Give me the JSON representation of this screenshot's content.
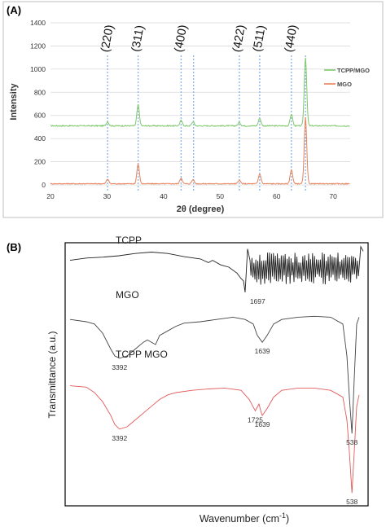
{
  "panels": [
    {
      "label": "(A)",
      "chart_data": {
        "type": "line",
        "xlabel": "2θ (degree)",
        "ylabel": "Intensity",
        "xlim": [
          20,
          73
        ],
        "ylim": [
          0,
          1400
        ],
        "x_ticks": [
          "20",
          "30",
          "40",
          "50",
          "60",
          "70"
        ],
        "y_ticks": [
          "0",
          "200",
          "400",
          "600",
          "800",
          "1000",
          "1200",
          "1400"
        ],
        "grid": "horizontal",
        "legend_position": "right",
        "reference_lines": [
          30.1,
          35.5,
          43.1,
          45.3,
          53.4,
          57.0,
          62.6,
          65.1
        ],
        "hkl_annotations": [
          {
            "label": "(220)",
            "x": 30.1
          },
          {
            "label": "(311)",
            "x": 35.5
          },
          {
            "label": "(400)",
            "x": 43.1
          },
          {
            "label": "(422)",
            "x": 53.4
          },
          {
            "label": "(511)",
            "x": 57.0
          },
          {
            "label": "(440)",
            "x": 62.6
          }
        ],
        "series": [
          {
            "name": "TCPP/MGO",
            "color": "#7ec86a",
            "baseline": 510,
            "noise": 10,
            "peaks": [
              {
                "x": 30.1,
                "y": 545
              },
              {
                "x": 35.5,
                "y": 690
              },
              {
                "x": 43.1,
                "y": 555
              },
              {
                "x": 45.2,
                "y": 545
              },
              {
                "x": 53.4,
                "y": 540
              },
              {
                "x": 57.0,
                "y": 575
              },
              {
                "x": 62.6,
                "y": 610
              },
              {
                "x": 65.1,
                "y": 1100
              }
            ]
          },
          {
            "name": "MGO",
            "color": "#e8825a",
            "baseline": 10,
            "noise": 8,
            "peaks": [
              {
                "x": 30.1,
                "y": 50
              },
              {
                "x": 35.5,
                "y": 180
              },
              {
                "x": 43.1,
                "y": 60
              },
              {
                "x": 45.2,
                "y": 45
              },
              {
                "x": 53.4,
                "y": 40
              },
              {
                "x": 57.0,
                "y": 95
              },
              {
                "x": 62.6,
                "y": 130
              },
              {
                "x": 65.1,
                "y": 580
              }
            ]
          }
        ]
      }
    },
    {
      "label": "(B)",
      "chart_data": {
        "type": "line",
        "xlabel": "Wavenumber (cm",
        "xlabel_superscript": "-1",
        "xlabel_suffix": ")",
        "ylabel": "Transmittance (a.u.)",
        "x_order": "descending",
        "xlim": [
          4000,
          400
        ],
        "series": [
          {
            "name": "TCPP",
            "color": "#222222",
            "label_at": 3600,
            "points": [
              [
                4000,
                0.9
              ],
              [
                3800,
                0.95
              ],
              [
                3600,
                0.97
              ],
              [
                3400,
                1.0
              ],
              [
                3200,
                1.05
              ],
              [
                3000,
                1.08
              ],
              [
                2800,
                1.05
              ],
              [
                2600,
                0.98
              ],
              [
                2400,
                0.93
              ],
              [
                2300,
                0.85
              ],
              [
                2250,
                0.9
              ],
              [
                2150,
                0.8
              ],
              [
                2050,
                0.75
              ],
              [
                1950,
                0.62
              ],
              [
                1900,
                0.5
              ],
              [
                1870,
                0.45
              ],
              [
                1850,
                0.2
              ],
              [
                1820,
                1.15
              ],
              [
                1790,
                0.9
              ]
            ],
            "noisy_from": 1790,
            "noisy_to": 450,
            "noise_center": 0.72,
            "noise_amp": 0.3,
            "tail": [
              [
                430,
                1.2
              ],
              [
                400,
                1.1
              ]
            ]
          },
          {
            "name": "MGO",
            "color": "#444444",
            "label_at": 3600,
            "points": [
              [
                4000,
                0.8
              ],
              [
                3800,
                0.75
              ],
              [
                3700,
                0.7
              ],
              [
                3600,
                0.5
              ],
              [
                3500,
                0.15
              ],
              [
                3450,
                0.0
              ],
              [
                3392,
                -0.05
              ],
              [
                3300,
                0.0
              ],
              [
                3200,
                0.15
              ],
              [
                3100,
                0.3
              ],
              [
                3050,
                0.35
              ],
              [
                2950,
                0.25
              ],
              [
                2900,
                0.45
              ],
              [
                2800,
                0.55
              ],
              [
                2700,
                0.65
              ],
              [
                2600,
                0.72
              ],
              [
                2400,
                0.75
              ],
              [
                2200,
                0.8
              ],
              [
                2000,
                0.85
              ],
              [
                1850,
                0.8
              ],
              [
                1750,
                0.7
              ],
              [
                1700,
                0.45
              ],
              [
                1639,
                0.3
              ],
              [
                1580,
                0.45
              ],
              [
                1500,
                0.7
              ],
              [
                1400,
                0.8
              ],
              [
                1200,
                0.85
              ],
              [
                1000,
                0.87
              ],
              [
                800,
                0.85
              ],
              [
                650,
                0.7
              ],
              [
                600,
                0.0
              ],
              [
                570,
                -0.9
              ],
              [
                538,
                -1.7
              ],
              [
                510,
                -0.5
              ],
              [
                480,
                0.7
              ],
              [
                450,
                0.85
              ]
            ]
          },
          {
            "name": "TCPP  MGO",
            "color": "#e25a5a",
            "label_at": 3600,
            "points": [
              [
                4000,
                0.65
              ],
              [
                3800,
                0.62
              ],
              [
                3700,
                0.5
              ],
              [
                3600,
                0.3
              ],
              [
                3500,
                0.0
              ],
              [
                3450,
                -0.2
              ],
              [
                3392,
                -0.3
              ],
              [
                3300,
                -0.25
              ],
              [
                3200,
                -0.1
              ],
              [
                3100,
                0.05
              ],
              [
                3000,
                0.2
              ],
              [
                2900,
                0.35
              ],
              [
                2800,
                0.45
              ],
              [
                2700,
                0.5
              ],
              [
                2500,
                0.55
              ],
              [
                2300,
                0.58
              ],
              [
                2100,
                0.6
              ],
              [
                1900,
                0.55
              ],
              [
                1800,
                0.35
              ],
              [
                1725,
                0.1
              ],
              [
                1680,
                0.25
              ],
              [
                1650,
                0.05
              ],
              [
                1639,
                0.0
              ],
              [
                1580,
                0.15
              ],
              [
                1500,
                0.4
              ],
              [
                1400,
                0.55
              ],
              [
                1200,
                0.6
              ],
              [
                1000,
                0.6
              ],
              [
                800,
                0.55
              ],
              [
                650,
                0.4
              ],
              [
                600,
                -0.1
              ],
              [
                570,
                -0.8
              ],
              [
                538,
                -1.7
              ],
              [
                510,
                -0.8
              ],
              [
                480,
                0.2
              ],
              [
                450,
                0.45
              ]
            ]
          }
        ],
        "annotations": [
          {
            "text": "1697",
            "x": 1697,
            "series": "TCPP"
          },
          {
            "text": "3392",
            "x": 3392,
            "series": "MGO"
          },
          {
            "text": "1639",
            "x": 1639,
            "series": "MGO"
          },
          {
            "text": "538",
            "x": 538,
            "series": "MGO"
          },
          {
            "text": "3392",
            "x": 3392,
            "series": "TCPP  MGO"
          },
          {
            "text": "1725",
            "x": 1725,
            "series": "TCPP  MGO"
          },
          {
            "text": "1639",
            "x": 1639,
            "series": "TCPP  MGO"
          },
          {
            "text": "538",
            "x": 538,
            "series": "TCPP  MGO"
          }
        ]
      }
    }
  ]
}
